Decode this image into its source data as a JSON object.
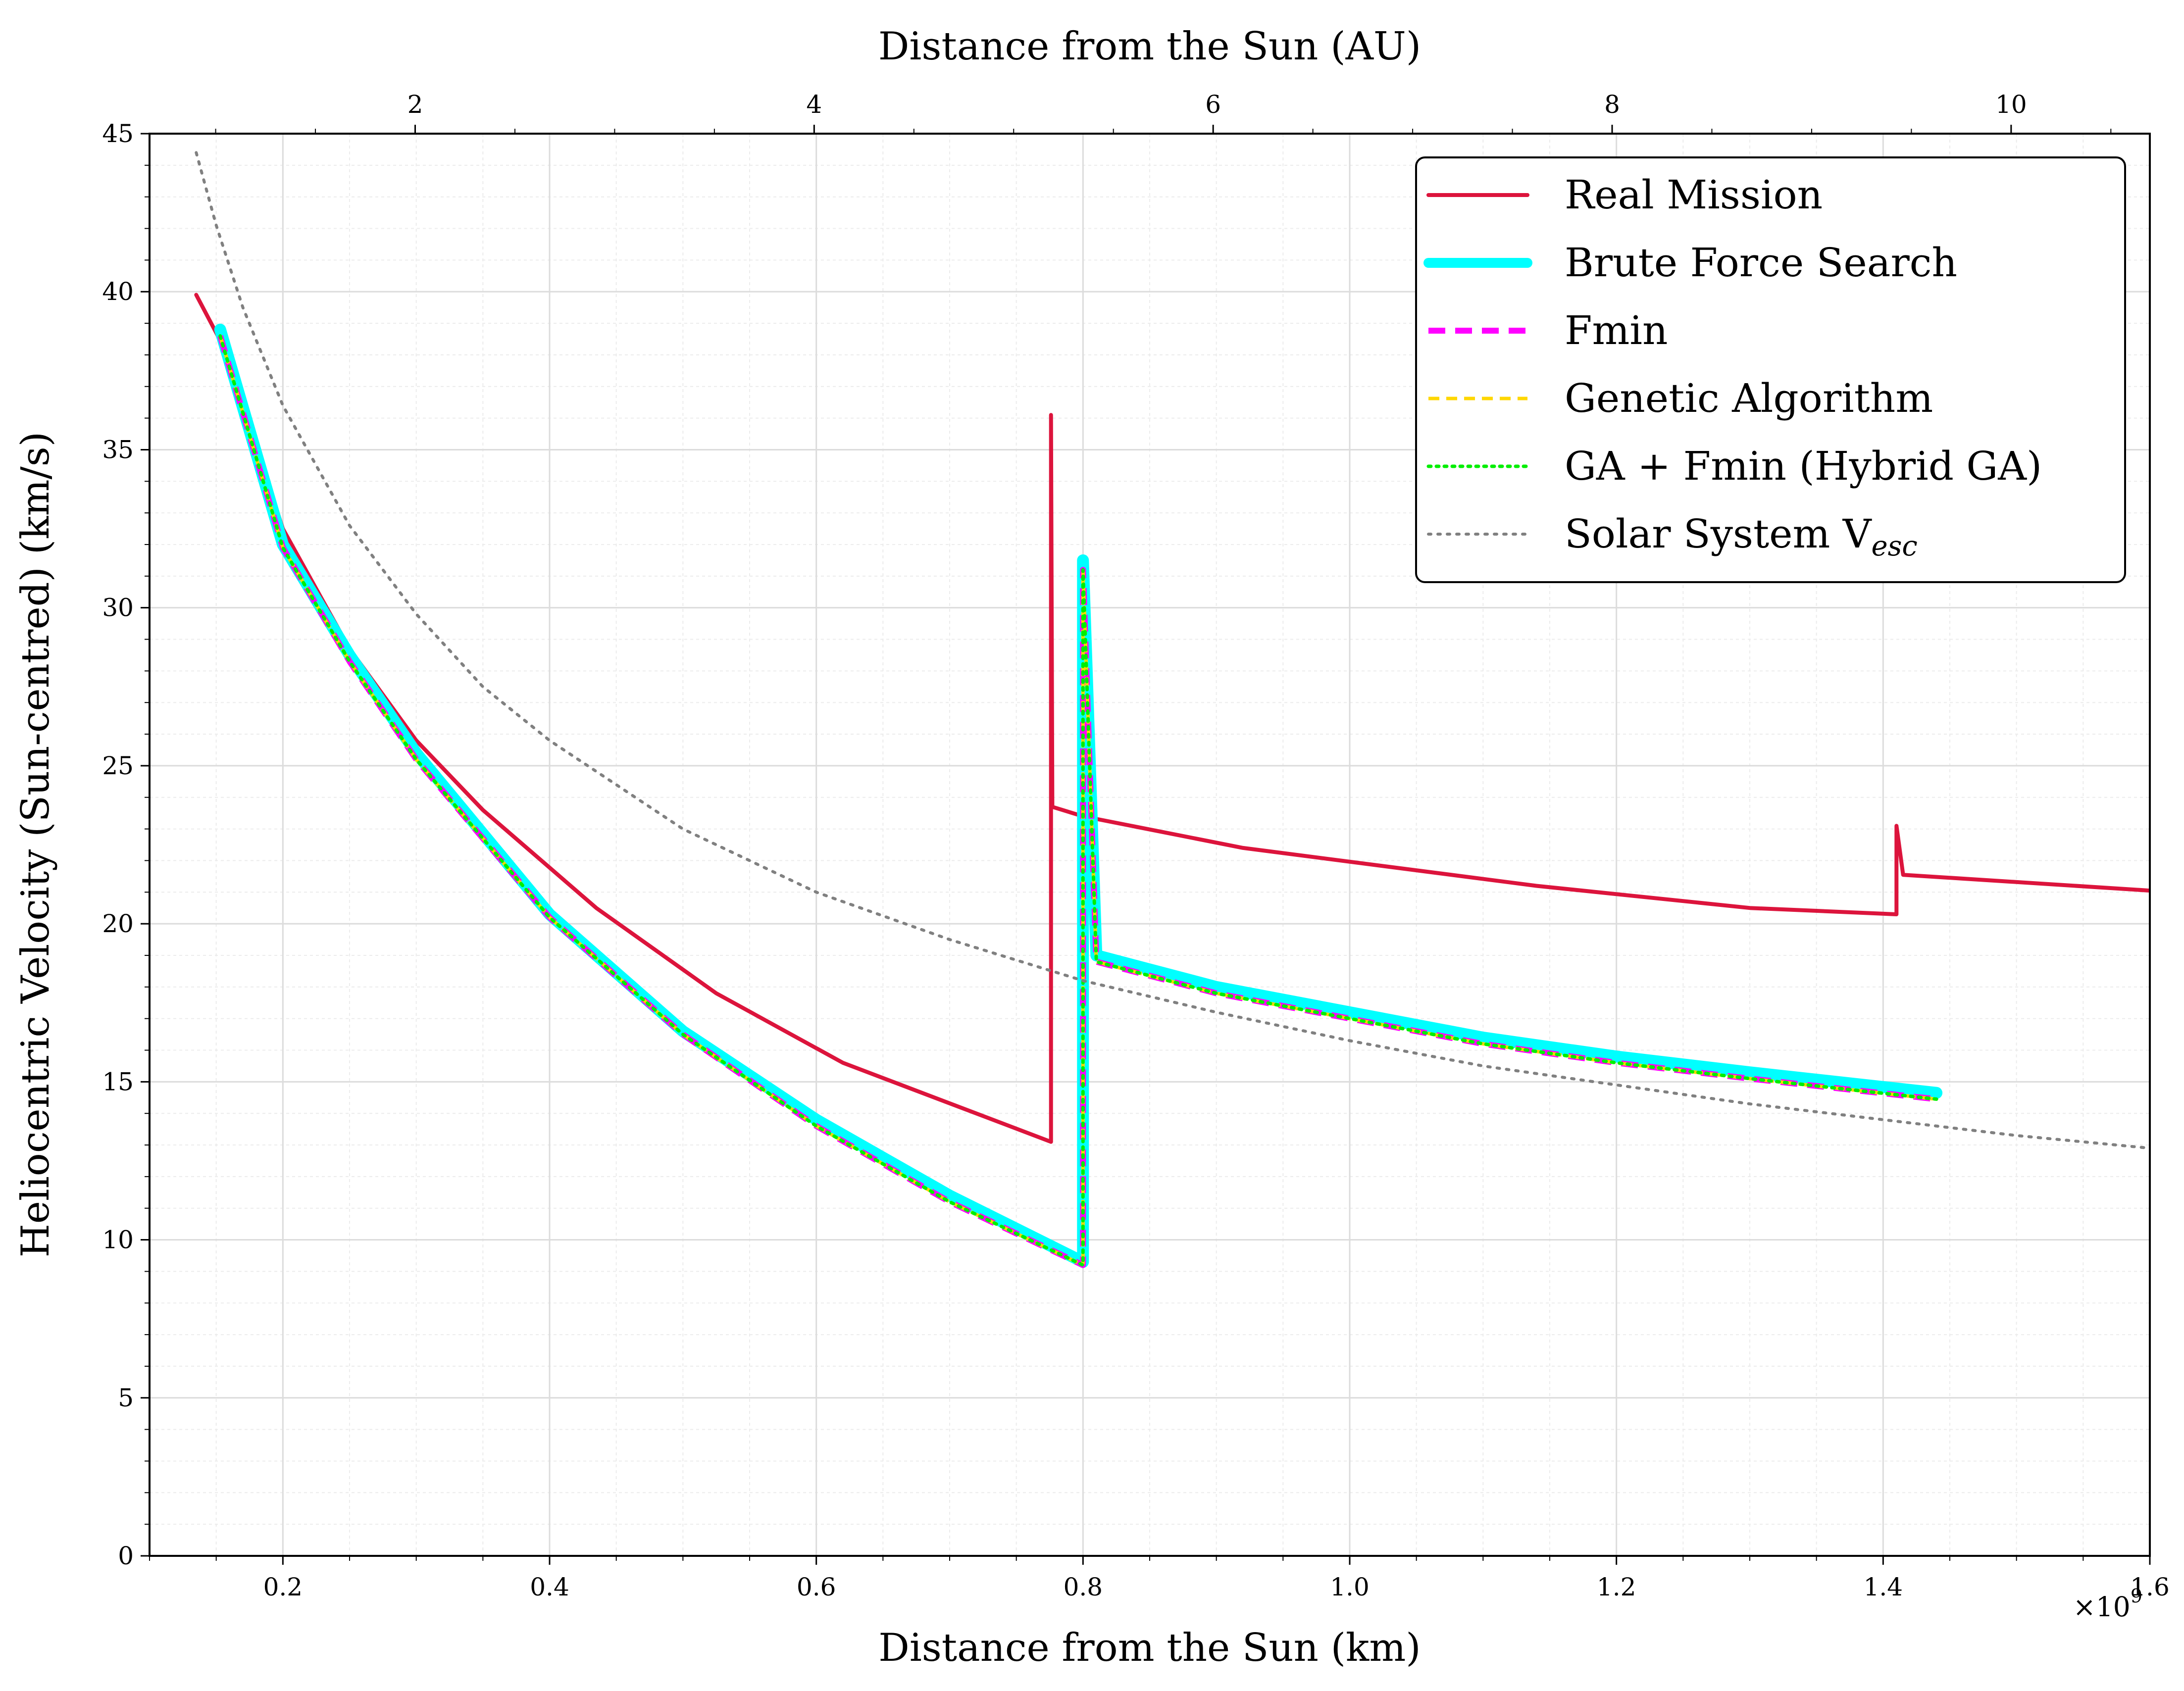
{
  "chart_data": {
    "type": "line",
    "xlabel": "Distance from the Sun (km)",
    "x_secondary_label": "Distance from the Sun (AU)",
    "ylabel": "Heliocentric Velocity (Sun-centred) (km/s)",
    "x_multiplier_label": "×10",
    "x_multiplier_exponent": "9",
    "xlim": [
      0.1,
      1.6
    ],
    "ylim": [
      0,
      45
    ],
    "x_ticks": [
      0.2,
      0.4,
      0.6,
      0.8,
      1.0,
      1.2,
      1.4,
      1.6
    ],
    "x_tick_labels": [
      "0.2",
      "0.4",
      "0.6",
      "0.8",
      "1.0",
      "1.2",
      "1.4",
      "1.6"
    ],
    "y_ticks": [
      0,
      5,
      10,
      15,
      20,
      25,
      30,
      35,
      40,
      45
    ],
    "y_tick_labels": [
      "0",
      "5",
      "10",
      "15",
      "20",
      "25",
      "30",
      "35",
      "40",
      "45"
    ],
    "au_ticks": [
      2,
      4,
      6,
      8,
      10
    ],
    "au_tick_labels": [
      "2",
      "4",
      "6",
      "8",
      "10"
    ],
    "au_km": 0.1495978707,
    "grid": true,
    "legend_position": "top-right",
    "series": [
      {
        "name": "Real Mission",
        "color": "#dc143c",
        "style": "solid",
        "x": [
          0.135,
          0.155,
          0.2,
          0.25,
          0.3,
          0.35,
          0.435,
          0.525,
          0.62,
          0.776,
          0.776,
          0.777,
          0.8,
          0.92,
          1.14,
          1.3,
          1.41,
          1.41,
          1.415,
          1.6
        ],
        "y": [
          39.9,
          38.3,
          32.5,
          28.7,
          25.8,
          23.6,
          20.5,
          17.8,
          15.6,
          13.1,
          36.1,
          23.7,
          23.4,
          22.4,
          21.2,
          20.5,
          20.3,
          23.1,
          21.55,
          21.05
        ]
      },
      {
        "name": "Brute Force Search",
        "color": "#00ffff",
        "style": "thick",
        "x": [
          0.153,
          0.2,
          0.25,
          0.3,
          0.4,
          0.5,
          0.6,
          0.7,
          0.8,
          0.8,
          0.81,
          0.9,
          1.0,
          1.1,
          1.2,
          1.3,
          1.44
        ],
        "y": [
          38.8,
          32.0,
          28.5,
          25.4,
          20.3,
          16.6,
          13.8,
          11.4,
          9.3,
          31.5,
          19.0,
          18.0,
          17.2,
          16.4,
          15.8,
          15.3,
          14.65
        ]
      },
      {
        "name": "Fmin",
        "color": "#ff00ff",
        "style": "dashed",
        "x": [
          0.153,
          0.2,
          0.25,
          0.3,
          0.4,
          0.5,
          0.6,
          0.7,
          0.8,
          0.8,
          0.81,
          0.9,
          1.0,
          1.1,
          1.2,
          1.3,
          1.44
        ],
        "y": [
          38.6,
          31.9,
          28.3,
          25.2,
          20.2,
          16.5,
          13.6,
          11.2,
          9.2,
          31.2,
          18.8,
          17.8,
          17.0,
          16.2,
          15.6,
          15.1,
          14.45
        ]
      },
      {
        "name": "Genetic Algorithm",
        "color": "#ffd700",
        "style": "dashed",
        "x": [
          0.153,
          0.2,
          0.25,
          0.3,
          0.4,
          0.5,
          0.6,
          0.7,
          0.8,
          0.8,
          0.81,
          0.9,
          1.0,
          1.1,
          1.2,
          1.3,
          1.44
        ],
        "y": [
          38.6,
          31.9,
          28.3,
          25.2,
          20.2,
          16.5,
          13.6,
          11.2,
          9.2,
          31.2,
          18.8,
          17.8,
          17.0,
          16.2,
          15.6,
          15.1,
          14.45
        ]
      },
      {
        "name": "GA + Fmin (Hybrid GA)",
        "color": "#00ee00",
        "style": "dotted",
        "x": [
          0.153,
          0.2,
          0.25,
          0.3,
          0.4,
          0.5,
          0.6,
          0.7,
          0.8,
          0.8,
          0.81,
          0.9,
          1.0,
          1.1,
          1.2,
          1.3,
          1.44
        ],
        "y": [
          38.6,
          31.9,
          28.3,
          25.2,
          20.2,
          16.5,
          13.6,
          11.2,
          9.2,
          31.2,
          18.8,
          17.8,
          17.0,
          16.2,
          15.6,
          15.1,
          14.45
        ]
      },
      {
        "name": "Solar System V",
        "name_subscript": "esc",
        "color": "#808080",
        "style": "dotted",
        "x": [
          0.135,
          0.15,
          0.17,
          0.2,
          0.25,
          0.3,
          0.35,
          0.4,
          0.5,
          0.6,
          0.7,
          0.8,
          0.9,
          1.0,
          1.1,
          1.2,
          1.3,
          1.4,
          1.5,
          1.6
        ],
        "y": [
          44.4,
          42.1,
          39.5,
          36.4,
          32.6,
          29.8,
          27.5,
          25.8,
          23.0,
          21.0,
          19.5,
          18.2,
          17.2,
          16.3,
          15.5,
          14.9,
          14.3,
          13.8,
          13.3,
          12.9
        ]
      }
    ]
  }
}
